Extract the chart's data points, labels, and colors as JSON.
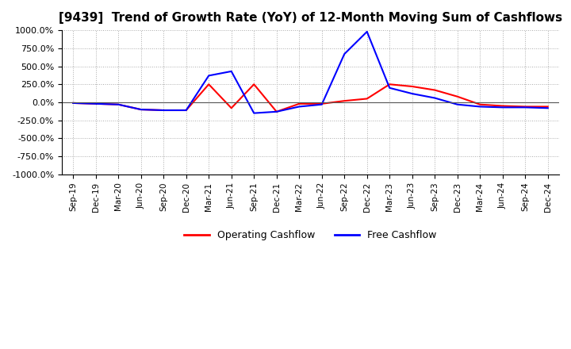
{
  "title": "[9439]  Trend of Growth Rate (YoY) of 12-Month Moving Sum of Cashflows",
  "title_fontsize": 11,
  "ylim": [
    -1000,
    1000
  ],
  "yticks": [
    -1000,
    -750,
    -500,
    -250,
    0,
    250,
    500,
    750,
    1000
  ],
  "yticklabels": [
    "-1000.0%",
    "-750.0%",
    "-500.0%",
    "-250.0%",
    "0.0%",
    "250.0%",
    "500.0%",
    "750.0%",
    "1000.0%"
  ],
  "background_color": "#ffffff",
  "plot_bg_color": "#ffffff",
  "grid_color": "#aaaaaa",
  "legend_labels": [
    "Operating Cashflow",
    "Free Cashflow"
  ],
  "legend_colors": [
    "#ff0000",
    "#0000ff"
  ],
  "x_labels": [
    "Sep-19",
    "Dec-19",
    "Mar-20",
    "Jun-20",
    "Sep-20",
    "Dec-20",
    "Mar-21",
    "Jun-21",
    "Sep-21",
    "Dec-21",
    "Mar-22",
    "Jun-22",
    "Sep-22",
    "Dec-22",
    "Mar-23",
    "Jun-23",
    "Sep-23",
    "Dec-23",
    "Mar-24",
    "Jun-24",
    "Sep-24",
    "Dec-24"
  ],
  "operating_cashflow": [
    -10,
    -20,
    -30,
    -100,
    -110,
    -110,
    250,
    -80,
    250,
    -130,
    -20,
    -20,
    20,
    50,
    250,
    220,
    170,
    80,
    -30,
    -50,
    -60,
    -60
  ],
  "free_cashflow": [
    -10,
    -20,
    -30,
    -100,
    -110,
    -110,
    370,
    430,
    -150,
    -130,
    -60,
    -30,
    670,
    980,
    200,
    120,
    60,
    -30,
    -60,
    -70,
    -70,
    -80
  ]
}
